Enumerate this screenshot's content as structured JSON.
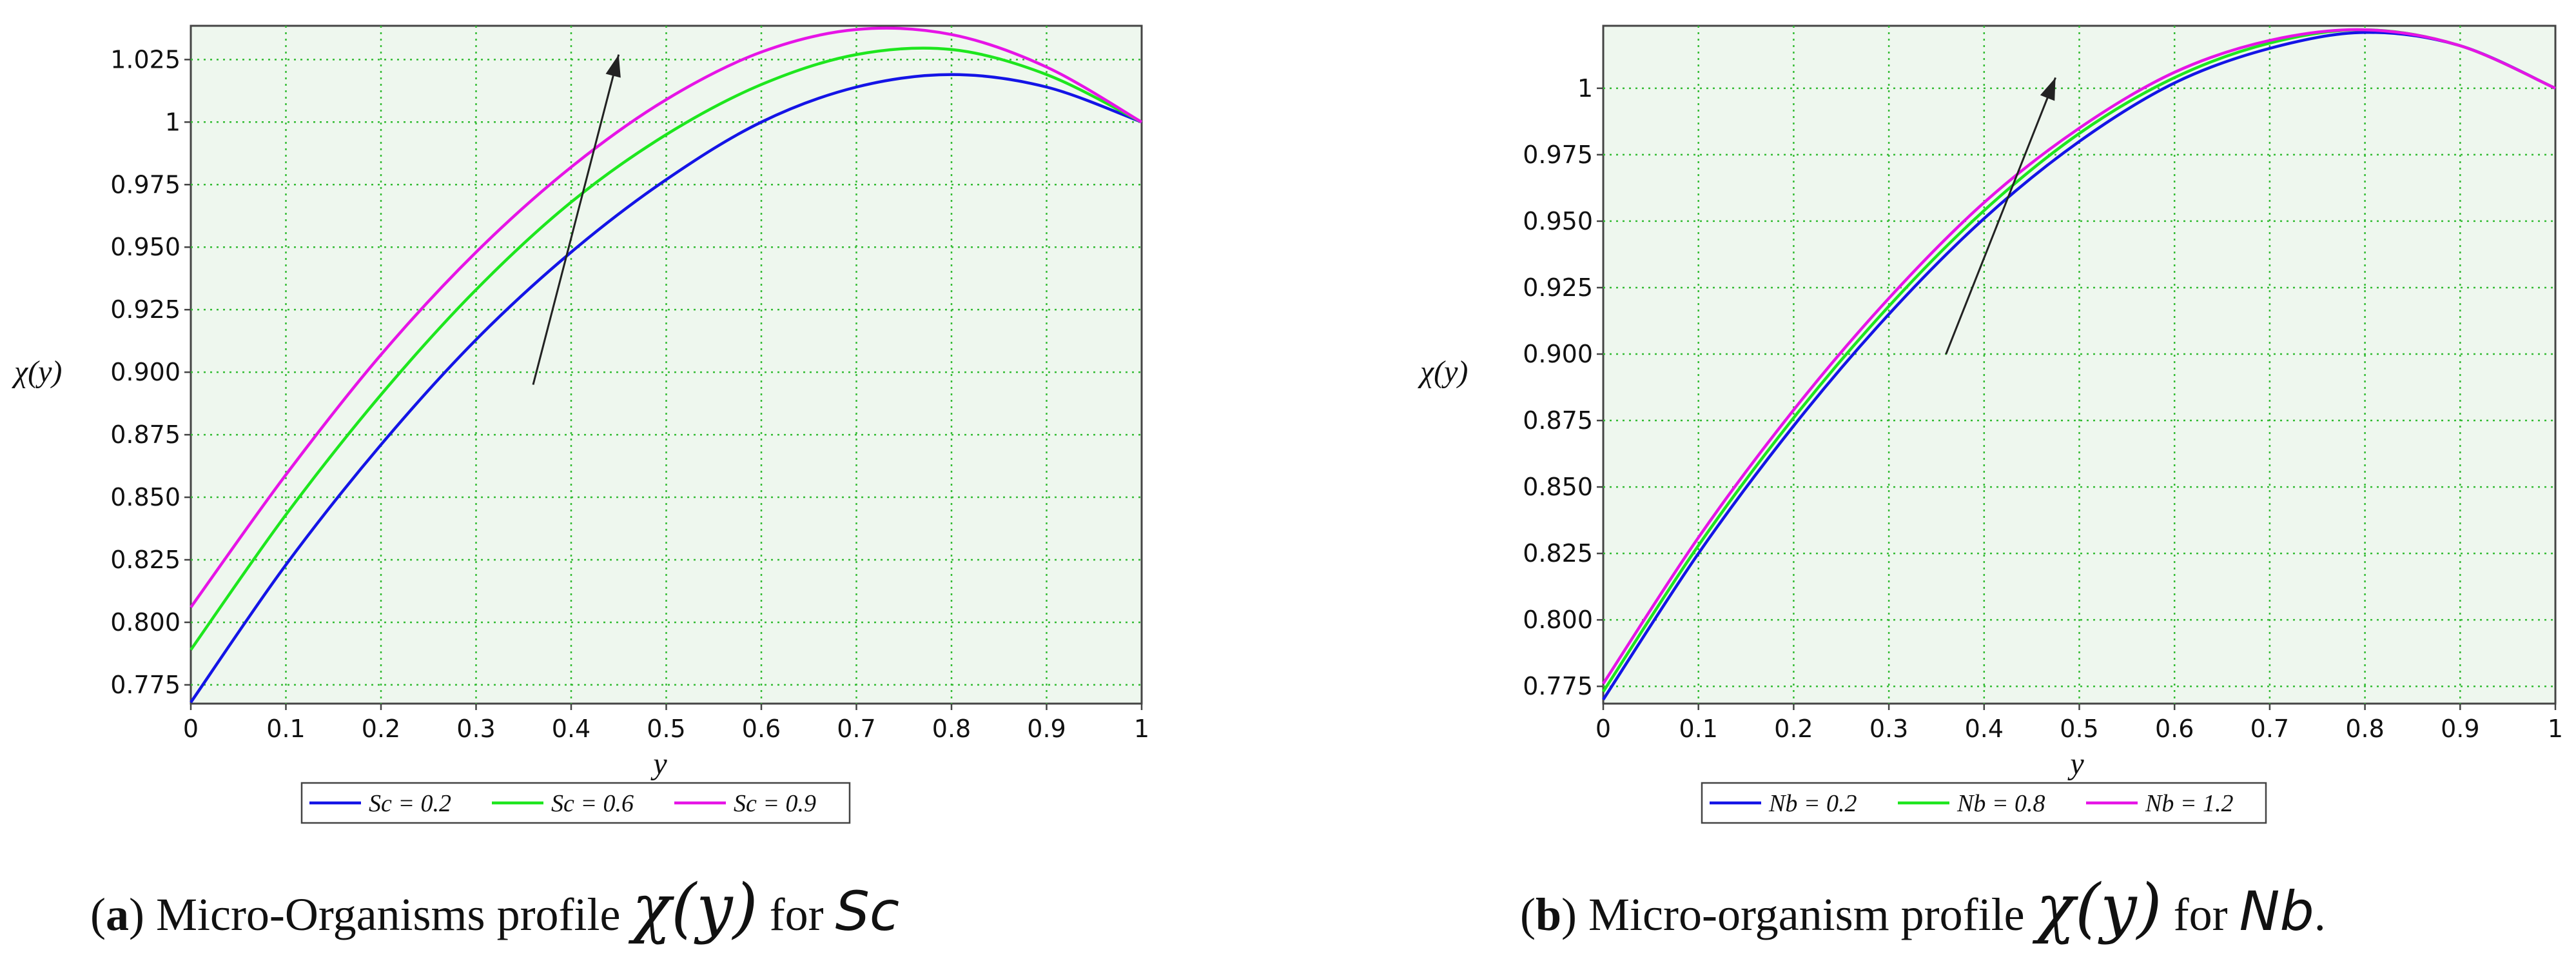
{
  "chart_data": [
    {
      "type": "line",
      "panel": "a",
      "title": "",
      "xlabel": "y",
      "ylabel": "χ(y)",
      "xlim": [
        0,
        1
      ],
      "ylim": [
        0.7675,
        1.0385
      ],
      "grid": true,
      "xticks": [
        0,
        0.1,
        0.2,
        0.3,
        0.4,
        0.5,
        0.6,
        0.7,
        0.8,
        0.9,
        1
      ],
      "xtick_labels": [
        "0",
        "0.1",
        "0.2",
        "0.3",
        "0.4",
        "0.5",
        "0.6",
        "0.7",
        "0.8",
        "0.9",
        "1"
      ],
      "yticks": [
        0.775,
        0.8,
        0.825,
        0.85,
        0.875,
        0.9,
        0.925,
        0.95,
        0.975,
        1,
        1.025
      ],
      "ytick_labels": [
        "0.775",
        "0.800",
        "0.825",
        "0.850",
        "0.875",
        "0.900",
        "0.925",
        "0.950",
        "0.975",
        "1",
        "1.025"
      ],
      "x": [
        0,
        0.1,
        0.2,
        0.3,
        0.4,
        0.5,
        0.6,
        0.7,
        0.8,
        0.9,
        1
      ],
      "series": [
        {
          "name": "Sc = 0.2",
          "color": "#1414e6",
          "values": [
            0.768,
            0.823,
            0.871,
            0.913,
            0.948,
            0.977,
            1.0,
            1.014,
            1.019,
            1.014,
            1.0
          ]
        },
        {
          "name": "Sc = 0.6",
          "color": "#1ee61e",
          "values": [
            0.789,
            0.843,
            0.891,
            0.933,
            0.968,
            0.995,
            1.015,
            1.027,
            1.029,
            1.019,
            1.0
          ]
        },
        {
          "name": "Sc = 0.9",
          "color": "#e614e6",
          "values": [
            0.806,
            0.859,
            0.907,
            0.948,
            0.982,
            1.009,
            1.028,
            1.037,
            1.035,
            1.022,
            1.0
          ]
        }
      ],
      "arrow": {
        "from": [
          0.36,
          0.895
        ],
        "to": [
          0.45,
          1.027
        ]
      },
      "legend": [
        "Sc = 0.2",
        "Sc = 0.6",
        "Sc = 0.9"
      ],
      "legend_position": "bottom-center"
    },
    {
      "type": "line",
      "panel": "b",
      "title": "",
      "xlabel": "y",
      "ylabel": "χ(y)",
      "xlim": [
        0,
        1
      ],
      "ylim": [
        0.7685,
        1.0235
      ],
      "grid": true,
      "xticks": [
        0,
        0.1,
        0.2,
        0.3,
        0.4,
        0.5,
        0.6,
        0.7,
        0.8,
        0.9,
        1
      ],
      "xtick_labels": [
        "0",
        "0.1",
        "0.2",
        "0.3",
        "0.4",
        "0.5",
        "0.6",
        "0.7",
        "0.8",
        "0.9",
        "1"
      ],
      "yticks": [
        0.775,
        0.8,
        0.825,
        0.85,
        0.875,
        0.9,
        0.925,
        0.95,
        0.975,
        1
      ],
      "ytick_labels": [
        "0.775",
        "0.800",
        "0.825",
        "0.850",
        "0.875",
        "0.900",
        "0.925",
        "0.950",
        "0.975",
        "1"
      ],
      "x": [
        0,
        0.1,
        0.2,
        0.3,
        0.4,
        0.5,
        0.6,
        0.7,
        0.8,
        0.9,
        1
      ],
      "series": [
        {
          "name": "Nb = 0.2",
          "color": "#1414e6",
          "values": [
            0.77,
            0.825,
            0.873,
            0.915,
            0.951,
            0.98,
            1.002,
            1.015,
            1.021,
            1.016,
            1.0
          ]
        },
        {
          "name": "Nb = 0.8",
          "color": "#1ee61e",
          "values": [
            0.773,
            0.828,
            0.876,
            0.918,
            0.954,
            0.983,
            1.004,
            1.017,
            1.022,
            1.016,
            1.0
          ]
        },
        {
          "name": "Nb = 1.2",
          "color": "#e614e6",
          "values": [
            0.776,
            0.831,
            0.879,
            0.921,
            0.957,
            0.985,
            1.006,
            1.018,
            1.022,
            1.016,
            1.0
          ]
        }
      ],
      "arrow": {
        "from": [
          0.36,
          0.9
        ],
        "to": [
          0.475,
          1.004
        ]
      },
      "legend": [
        "Nb = 0.2",
        "Nb = 0.8",
        "Nb = 1.2"
      ],
      "legend_position": "bottom-center"
    }
  ],
  "captions": [
    {
      "letter": "a",
      "text": " Micro-Organisms profile ",
      "math_chi": "χ",
      "math_arg": "(y)",
      "for_text": " for ",
      "var": "Sc",
      "end": ""
    },
    {
      "letter": "b",
      "text": " Micro-organism profile ",
      "math_chi": "χ",
      "math_arg": "(y)",
      "for_text": " for ",
      "var": "Nb",
      "end": "."
    }
  ],
  "colors": {
    "plot_background": "#eef7ee",
    "grid": "#33bb33",
    "axis": "#444444",
    "arrow": "#222222"
  }
}
